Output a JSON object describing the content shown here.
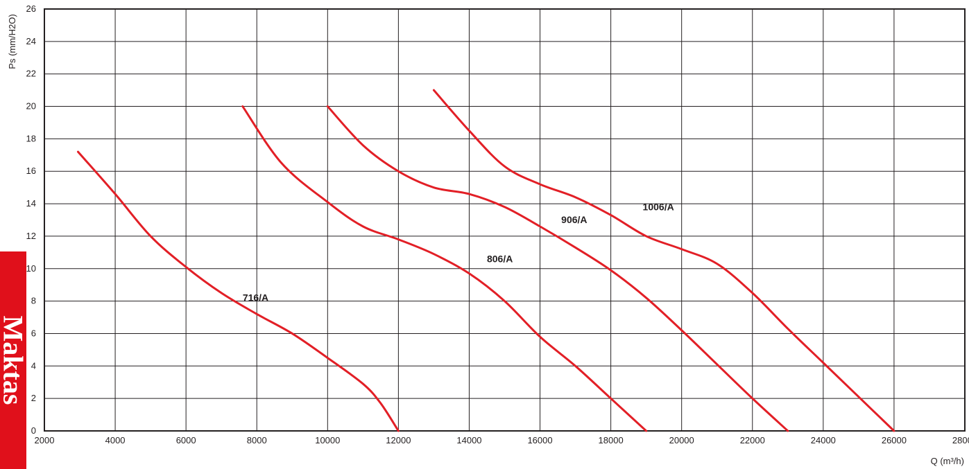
{
  "chart_data": {
    "type": "line",
    "title": "",
    "xlabel": "Q (m³/h)",
    "ylabel": "Ps (mm/H2O)",
    "xlim": [
      2000,
      28000
    ],
    "ylim": [
      0,
      26
    ],
    "x_ticks": [
      2000,
      4000,
      6000,
      8000,
      10000,
      12000,
      14000,
      16000,
      18000,
      20000,
      22000,
      24000,
      26000,
      28000
    ],
    "y_ticks": [
      0,
      2,
      4,
      6,
      8,
      10,
      12,
      14,
      16,
      18,
      20,
      22,
      24,
      26
    ],
    "grid": true,
    "line_color": "#e21f26",
    "series": [
      {
        "name": "716/A",
        "points": [
          [
            2950,
            17.2
          ],
          [
            4000,
            14.6
          ],
          [
            5000,
            12.0
          ],
          [
            6000,
            10.1
          ],
          [
            7000,
            8.5
          ],
          [
            8000,
            7.2
          ],
          [
            9000,
            6.0
          ],
          [
            10000,
            4.5
          ],
          [
            11000,
            2.9
          ],
          [
            11500,
            1.7
          ],
          [
            12000,
            0
          ]
        ]
      },
      {
        "name": "806/A",
        "points": [
          [
            7600,
            20.0
          ],
          [
            8700,
            16.5
          ],
          [
            10000,
            14.1
          ],
          [
            11000,
            12.6
          ],
          [
            12000,
            11.8
          ],
          [
            13000,
            10.9
          ],
          [
            14000,
            9.7
          ],
          [
            15000,
            8.0
          ],
          [
            16000,
            5.8
          ],
          [
            17000,
            4.0
          ],
          [
            18000,
            2.0
          ],
          [
            19000,
            0
          ]
        ]
      },
      {
        "name": "906/A",
        "points": [
          [
            10000,
            20.0
          ],
          [
            11000,
            17.6
          ],
          [
            12000,
            16.0
          ],
          [
            13000,
            15.0
          ],
          [
            14000,
            14.6
          ],
          [
            15000,
            13.8
          ],
          [
            16000,
            12.6
          ],
          [
            17000,
            11.3
          ],
          [
            18000,
            9.9
          ],
          [
            19000,
            8.2
          ],
          [
            20000,
            6.2
          ],
          [
            21000,
            4.1
          ],
          [
            22000,
            2.0
          ],
          [
            23000,
            0
          ]
        ]
      },
      {
        "name": "1006/A",
        "points": [
          [
            13000,
            21.0
          ],
          [
            14000,
            18.5
          ],
          [
            15000,
            16.3
          ],
          [
            16000,
            15.2
          ],
          [
            17000,
            14.4
          ],
          [
            18000,
            13.3
          ],
          [
            19000,
            12.0
          ],
          [
            20000,
            11.2
          ],
          [
            21000,
            10.3
          ],
          [
            22000,
            8.5
          ],
          [
            23000,
            6.3
          ],
          [
            24000,
            4.2
          ],
          [
            25000,
            2.1
          ],
          [
            26000,
            0
          ]
        ]
      }
    ],
    "annotations": [
      {
        "text": "716/A",
        "x": 7600,
        "y": 8.0
      },
      {
        "text": "806/A",
        "x": 14500,
        "y": 10.4
      },
      {
        "text": "906/A",
        "x": 16600,
        "y": 12.8
      },
      {
        "text": "1006/A",
        "x": 18900,
        "y": 13.6
      }
    ]
  },
  "brand": {
    "text": "Maktas"
  }
}
